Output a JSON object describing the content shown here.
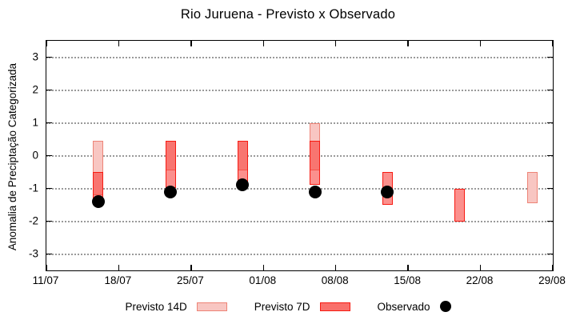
{
  "chart_data": {
    "type": "bar",
    "subtype": "floating-range-bars-with-scatter-overlay",
    "title": "Rio Juruena - Previsto x Observado",
    "ylabel": "Anomalia de Preciptação Categorizada",
    "xlabel": "",
    "ylim": [
      -3.5,
      3.5
    ],
    "yticks": [
      3,
      2,
      1,
      0,
      -1,
      -2,
      -3
    ],
    "grid": "horizontal-dotted",
    "legend_position": "bottom",
    "x_total_days": 49,
    "xticks": [
      {
        "label": "11/07",
        "day": 0
      },
      {
        "label": "18/07",
        "day": 7
      },
      {
        "label": "25/07",
        "day": 14
      },
      {
        "label": "01/08",
        "day": 21
      },
      {
        "label": "08/08",
        "day": 28
      },
      {
        "label": "15/08",
        "day": 35
      },
      {
        "label": "22/08",
        "day": 42
      },
      {
        "label": "29/08",
        "day": 49
      }
    ],
    "series": [
      {
        "name": "Previsto 14D",
        "type": "range-bar",
        "fill_color": "#f8c6c2",
        "border_color": "#ee8477",
        "points": [
          {
            "date": "16/07",
            "day": 5,
            "high": 0.45,
            "low": -1.2
          },
          {
            "date": "23/07",
            "day": 12,
            "high": 0.45,
            "low": -0.45
          },
          {
            "date": "30/07",
            "day": 19,
            "high": 0.45,
            "low": -0.45
          },
          {
            "date": "06/08",
            "day": 26,
            "high": 1.0,
            "low": -0.45
          },
          {
            "date": "27/08",
            "day": 47,
            "high": -0.5,
            "low": -1.45
          }
        ]
      },
      {
        "name": "Previsto 7D",
        "type": "range-bar",
        "fill_color": "rgba(247,42,37,0.52)",
        "border_color": "#f71b12",
        "points": [
          {
            "date": "16/07",
            "day": 5,
            "high": -0.5,
            "low": -1.45
          },
          {
            "date": "23/07",
            "day": 12,
            "high": 0.45,
            "low": -1.0
          },
          {
            "date": "30/07",
            "day": 19,
            "high": 0.45,
            "low": -0.9
          },
          {
            "date": "06/08",
            "day": 26,
            "high": 0.45,
            "low": -0.9
          },
          {
            "date": "13/08",
            "day": 33,
            "high": -0.5,
            "low": -1.5
          },
          {
            "date": "20/08",
            "day": 40,
            "high": -1.0,
            "low": -2.0
          }
        ]
      },
      {
        "name": "Observado",
        "type": "scatter",
        "marker": "filled-circle",
        "color": "#000000",
        "points": [
          {
            "date": "16/07",
            "day": 5,
            "value": -1.4
          },
          {
            "date": "23/07",
            "day": 12,
            "value": -1.1
          },
          {
            "date": "30/07",
            "day": 19,
            "value": -0.9
          },
          {
            "date": "06/08",
            "day": 26,
            "value": -1.1
          },
          {
            "date": "13/08",
            "day": 33,
            "value": -1.1
          }
        ]
      }
    ]
  },
  "legend": {
    "items": [
      {
        "label": "Previsto 14D"
      },
      {
        "label": "Previsto 7D"
      },
      {
        "label": "Observado"
      }
    ]
  }
}
